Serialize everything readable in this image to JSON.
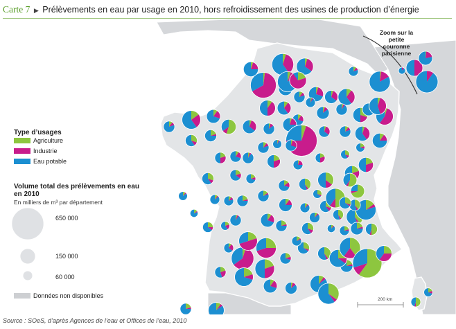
{
  "header": {
    "prefix": "Carte 7",
    "title": "Prélèvements en eau par usage en 2010, hors refroidissement des usines de production d’énergie"
  },
  "colors": {
    "agriculture": "#8dc63f",
    "industrie": "#c81c8c",
    "eau_potable": "#1c8fd1",
    "land": "#e3e5e7",
    "land_border": "#ffffff",
    "neighbor": "#d5d7da",
    "sea": "#ffffff"
  },
  "legend": {
    "type_title": "Type d’usages",
    "items": [
      {
        "key": "agriculture",
        "label": "Agriculture"
      },
      {
        "key": "industrie",
        "label": "Industrie"
      },
      {
        "key": "eau_potable",
        "label": "Eau potable"
      }
    ],
    "volume_title": "Volume total des prélèvements en eau en 2010",
    "volume_subtitle": "En milliers de m³ par département",
    "circles": [
      {
        "label": "650 000",
        "value": 650000
      },
      {
        "label": "150 000",
        "value": 150000
      },
      {
        "label": "60 000",
        "value": 60000
      }
    ],
    "no_data": "Données non disponibles"
  },
  "zoom_label": "Zoom sur la petite couronne parisienne",
  "scale_label": "200 km",
  "source": "Source : SOeS, d’après Agences de l’eau et Offices de l’eau, 2010",
  "map_data": {
    "projection": "Lambert-93 (approx.)",
    "departments": [
      {
        "v": 210000,
        "a": 0.02,
        "i": 0.65,
        "e": 0.33
      },
      {
        "v": 150000,
        "a": 0.05,
        "i": 0.35,
        "e": 0.6
      },
      {
        "v": 90000,
        "a": 0.05,
        "i": 0.3,
        "e": 0.65
      },
      {
        "v": 60000,
        "a": 0.05,
        "i": 0.25,
        "e": 0.7
      },
      {
        "v": 80000,
        "a": 0.1,
        "i": 0.4,
        "e": 0.5
      },
      {
        "v": 60000,
        "a": 0.1,
        "i": 0.3,
        "e": 0.6
      },
      {
        "v": 40000,
        "a": 0.1,
        "i": 0.1,
        "e": 0.8
      },
      {
        "v": 70000,
        "a": 0.05,
        "i": 0.25,
        "e": 0.7
      },
      {
        "v": 55000,
        "a": 0.05,
        "i": 0.3,
        "e": 0.65
      },
      {
        "v": 90000,
        "a": 0.1,
        "i": 0.3,
        "e": 0.6
      },
      {
        "v": 40000,
        "a": 0.1,
        "i": 0.2,
        "e": 0.7
      },
      {
        "v": 50000,
        "a": 0.05,
        "i": 0.1,
        "e": 0.85
      },
      {
        "v": 40000,
        "a": 0.05,
        "i": 0.05,
        "e": 0.9
      },
      {
        "v": 30000,
        "a": 0.05,
        "i": 0.05,
        "e": 0.9
      },
      {
        "v": 70000,
        "a": 0.3,
        "i": 0.2,
        "e": 0.5
      },
      {
        "v": 50000,
        "a": 0.1,
        "i": 0.1,
        "e": 0.8
      },
      {
        "v": 95000,
        "a": 0.05,
        "i": 0.55,
        "e": 0.4
      },
      {
        "v": 70000,
        "a": 0.1,
        "i": 0.15,
        "e": 0.75
      },
      {
        "v": 70000,
        "a": 0.05,
        "i": 0.35,
        "e": 0.6
      },
      {
        "v": 95000,
        "a": 0.05,
        "i": 0.4,
        "e": 0.55
      },
      {
        "v": 60000,
        "a": 0.05,
        "i": 0.3,
        "e": 0.65
      },
      {
        "v": 40000,
        "a": 0.05,
        "i": 0.1,
        "e": 0.85
      },
      {
        "v": 60000,
        "a": 0.05,
        "i": 0.2,
        "e": 0.75
      },
      {
        "v": 310000,
        "a": 0.05,
        "i": 0.7,
        "e": 0.25
      },
      {
        "v": 25000,
        "a": 0.05,
        "i": 0.05,
        "e": 0.9
      },
      {
        "v": 40000,
        "a": 0.05,
        "i": 0.25,
        "e": 0.7
      },
      {
        "v": 40000,
        "a": 0.05,
        "i": 0.3,
        "e": 0.65
      },
      {
        "v": 40000,
        "a": 0.1,
        "i": 0.1,
        "e": 0.8
      },
      {
        "v": 40000,
        "a": 0.1,
        "i": 0.1,
        "e": 0.8
      },
      {
        "v": 40000,
        "a": 0.05,
        "i": 0.05,
        "e": 0.9
      },
      {
        "v": 40000,
        "a": 0.1,
        "i": 0.2,
        "e": 0.7
      },
      {
        "v": 70000,
        "a": 0.55,
        "i": 0.1,
        "e": 0.35
      },
      {
        "v": 60000,
        "a": 0.1,
        "i": 0.2,
        "e": 0.7
      },
      {
        "v": 110000,
        "a": 0.15,
        "i": 0.25,
        "e": 0.6
      },
      {
        "v": 40000,
        "a": 0.1,
        "i": 0.1,
        "e": 0.8
      },
      {
        "v": 45000,
        "a": 0.3,
        "i": 0.1,
        "e": 0.6
      },
      {
        "v": 45000,
        "a": 0.2,
        "i": 0.05,
        "e": 0.75
      },
      {
        "v": 40000,
        "a": 0.2,
        "i": 0.3,
        "e": 0.5
      },
      {
        "v": 45000,
        "a": 0.3,
        "i": 0.1,
        "e": 0.6
      },
      {
        "v": 40000,
        "a": 0.2,
        "i": 0.15,
        "e": 0.65
      },
      {
        "v": 30000,
        "a": 0.2,
        "i": 0.1,
        "e": 0.7
      },
      {
        "v": 55000,
        "a": 0.2,
        "i": 0.3,
        "e": 0.5
      },
      {
        "v": 30000,
        "a": 0.05,
        "i": 0.2,
        "e": 0.75
      },
      {
        "v": 30000,
        "a": 0.2,
        "i": 0.3,
        "e": 0.5
      },
      {
        "v": 25000,
        "a": 0.3,
        "i": 0.1,
        "e": 0.6
      },
      {
        "v": 25000,
        "a": 0.2,
        "i": 0.1,
        "e": 0.7
      },
      {
        "v": 70000,
        "a": 0.2,
        "i": 0.2,
        "e": 0.6
      },
      {
        "v": 70000,
        "a": 0.2,
        "i": 0.3,
        "e": 0.5
      },
      {
        "v": 80000,
        "a": 0.35,
        "i": 0.15,
        "e": 0.5
      },
      {
        "v": 60000,
        "a": 0.55,
        "i": 0.05,
        "e": 0.4
      },
      {
        "v": 45000,
        "a": 0.4,
        "i": 0.05,
        "e": 0.55
      },
      {
        "v": 40000,
        "a": 0.15,
        "i": 0.15,
        "e": 0.7
      },
      {
        "v": 40000,
        "a": 0.15,
        "i": 0.05,
        "e": 0.8
      },
      {
        "v": 40000,
        "a": 0.2,
        "i": 0.05,
        "e": 0.75
      },
      {
        "v": 30000,
        "a": 0.1,
        "i": 0.1,
        "e": 0.8
      },
      {
        "v": 25000,
        "a": 0.2,
        "i": 0.2,
        "e": 0.6
      },
      {
        "v": 30000,
        "a": 0.1,
        "i": 0.25,
        "e": 0.65
      },
      {
        "v": 40000,
        "a": 0.2,
        "i": 0.25,
        "e": 0.55
      },
      {
        "v": 160000,
        "a": 0.05,
        "i": 0.6,
        "e": 0.35
      },
      {
        "v": 110000,
        "a": 0.2,
        "i": 0.5,
        "e": 0.3
      },
      {
        "v": 130000,
        "a": 0.25,
        "i": 0.45,
        "e": 0.3
      },
      {
        "v": 60000,
        "a": 0.1,
        "i": 0.2,
        "e": 0.7
      },
      {
        "v": 55000,
        "a": 0.1,
        "i": 0.15,
        "e": 0.75
      },
      {
        "v": 30000,
        "a": 0.1,
        "i": 0.05,
        "e": 0.85
      },
      {
        "v": 45000,
        "a": 0.3,
        "i": 0.1,
        "e": 0.6
      },
      {
        "v": 120000,
        "a": 0.5,
        "i": 0.1,
        "e": 0.4
      },
      {
        "v": 90000,
        "a": 0.4,
        "i": 0.05,
        "e": 0.55
      },
      {
        "v": 130000,
        "a": 0.15,
        "i": 0.05,
        "e": 0.8
      },
      {
        "v": 60000,
        "a": 0.7,
        "i": 0.05,
        "e": 0.25
      },
      {
        "v": 45000,
        "a": 0.3,
        "i": 0.05,
        "e": 0.65
      },
      {
        "v": 55000,
        "a": 0.4,
        "i": 0.05,
        "e": 0.55
      },
      {
        "v": 30000,
        "a": 0.2,
        "i": 0.05,
        "e": 0.75
      },
      {
        "v": 50000,
        "a": 0.2,
        "i": 0.05,
        "e": 0.75
      },
      {
        "v": 100000,
        "a": 0.25,
        "i": 0.1,
        "e": 0.65
      },
      {
        "v": 140000,
        "a": 0.4,
        "i": 0.2,
        "e": 0.4
      },
      {
        "v": 270000,
        "a": 0.6,
        "i": 0.1,
        "e": 0.3
      },
      {
        "v": 80000,
        "a": 0.25,
        "i": 0.35,
        "e": 0.4
      },
      {
        "v": 110000,
        "a": 0.2,
        "i": 0.1,
        "e": 0.7
      },
      {
        "v": 120000,
        "a": 0.2,
        "i": 0.3,
        "e": 0.5
      },
      {
        "v": 40000,
        "a": 0.2,
        "i": 0.1,
        "e": 0.7
      },
      {
        "v": 45000,
        "a": 0.3,
        "i": 0.1,
        "e": 0.6
      },
      {
        "v": 60000,
        "a": 0.1,
        "i": 0.2,
        "e": 0.7
      },
      {
        "v": 45000,
        "a": 0.05,
        "i": 0.1,
        "e": 0.85
      },
      {
        "v": 95000,
        "a": 0.1,
        "i": 0.05,
        "e": 0.85
      },
      {
        "v": 140000,
        "a": 0.35,
        "i": 0.05,
        "e": 0.6
      },
      {
        "v": 40000,
        "a": 0.2,
        "i": 0.05,
        "e": 0.75
      },
      {
        "v": 30000,
        "a": 0.15,
        "i": 0.05,
        "e": 0.8
      },
      {
        "v": 35000,
        "a": 0.1,
        "i": 0.05,
        "e": 0.85
      },
      {
        "v": 20000,
        "a": 0.1,
        "i": 0.05,
        "e": 0.85
      },
      {
        "v": 25000,
        "a": 0.3,
        "i": 0.05,
        "e": 0.65
      },
      {
        "v": 35000,
        "a": 0.4,
        "i": 0.05,
        "e": 0.55
      },
      {
        "v": 40000,
        "a": 0.4,
        "i": 0.05,
        "e": 0.55
      },
      {
        "v": 45000,
        "a": 0.5,
        "i": 0.05,
        "e": 0.45
      },
      {
        "v": 50000,
        "a": 0.2,
        "i": 0.05,
        "e": 0.75
      },
      {
        "v": 45000,
        "a": 0.3,
        "i": 0.05,
        "e": 0.65
      },
      {
        "v": 35000,
        "a": 0.25,
        "i": 0.1,
        "e": 0.65
      },
      {
        "v": 20000,
        "a": 0.15,
        "i": 0.05,
        "e": 0.8
      },
      {
        "v": 25000,
        "a": 0.1,
        "i": 0.05,
        "e": 0.85
      },
      {
        "v": 30000,
        "a": 0.1,
        "i": 0.05,
        "e": 0.85
      },
      {
        "v": 40000,
        "a": 0.05,
        "i": 0.05,
        "e": 0.9
      },
      {
        "v": 130000,
        "a": 0.05,
        "i": 0.1,
        "e": 0.85
      },
      {
        "v": 90000,
        "a": 0.2,
        "i": 0.7,
        "e": 0.1
      },
      {
        "v": 70000,
        "a": 0.05,
        "i": 0.2,
        "e": 0.75
      },
      {
        "v": 140000,
        "a": 0.02,
        "i": 0.15,
        "e": 0.83
      },
      {
        "v": 30000,
        "a": 0.1,
        "i": 0.1,
        "e": 0.8
      },
      {
        "v": 25000,
        "a": 0.2,
        "i": 0.1,
        "e": 0.7
      },
      {
        "v": 30000,
        "a": 0.5,
        "i": 0.05,
        "e": 0.45
      },
      {
        "v": 40000,
        "a": 0.2,
        "i": 0.05,
        "e": 0.75
      },
      {
        "v": 80000,
        "a": 0.1,
        "i": 0.05,
        "e": 0.85
      }
    ]
  }
}
